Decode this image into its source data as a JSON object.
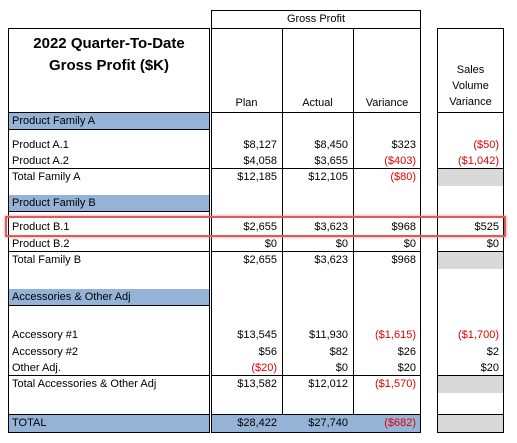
{
  "header": {
    "title_lines": [
      "2022 Quarter-To-Date",
      "Gross Profit ($K)"
    ],
    "group_header": "Gross Profit",
    "columns": [
      "Plan",
      "Actual",
      "Variance"
    ],
    "extra_column_lines": [
      "Sales",
      "Volume",
      "Variance"
    ]
  },
  "sections": [
    {
      "title": "Product Family A",
      "rows": [
        {
          "label": "Product A.1",
          "values": [
            "$8,127",
            "$8,450",
            "$323",
            "($50)"
          ]
        },
        {
          "label": "Product A.2",
          "values": [
            "$4,058",
            "$3,655",
            "($403)",
            "($1,042)"
          ]
        }
      ],
      "total": {
        "label": "Total Family A",
        "values": [
          "$12,185",
          "$12,105",
          "($80)"
        ]
      }
    },
    {
      "title": "Product Family B",
      "rows": [
        {
          "label": "Product B.1",
          "values": [
            "$2,655",
            "$3,623",
            "$968",
            "$525"
          ]
        },
        {
          "label": "Product B.2",
          "values": [
            "$0",
            "$0",
            "$0",
            "$0"
          ]
        }
      ],
      "total": {
        "label": "Total Family B",
        "values": [
          "$2,655",
          "$3,623",
          "$968"
        ]
      }
    },
    {
      "title": "Accessories & Other Adj",
      "rows": [
        {
          "label": "Accessory #1",
          "values": [
            "$13,545",
            "$11,930",
            "($1,615)",
            "($1,700)"
          ]
        },
        {
          "label": "Accessory #2",
          "values": [
            "$56",
            "$82",
            "$26",
            "$2"
          ]
        },
        {
          "label": "Other Adj.",
          "values": [
            "($20)",
            "$0",
            "$20",
            "$20"
          ]
        }
      ],
      "total": {
        "label": "Total Accessories & Other Adj",
        "values": [
          "$13,582",
          "$12,012",
          "($1,570)"
        ]
      }
    }
  ],
  "grand_total": {
    "label": "TOTAL",
    "values": [
      "$28,422",
      "$27,740",
      "($682)"
    ]
  }
}
